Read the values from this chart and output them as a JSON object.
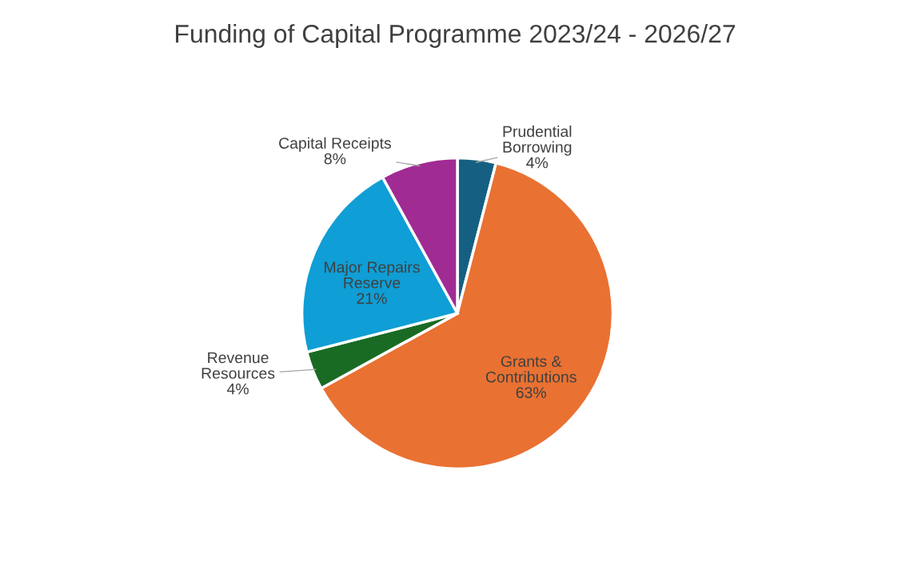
{
  "chart_data": {
    "type": "pie",
    "title": "Funding of Capital Programme 2023/24 - 2026/27",
    "categories": [
      "Prudential Borrowing",
      "Grants & Contributions",
      "Revenue Resources",
      "Major Repairs Reserve",
      "Capital Receipts"
    ],
    "values": [
      4,
      63,
      4,
      21,
      8
    ],
    "colors": [
      "#156082",
      "#e97132",
      "#196b24",
      "#0f9ed5",
      "#a02b93"
    ],
    "value_labels": [
      "4%",
      "63%",
      "4%",
      "21%",
      "8%"
    ]
  }
}
